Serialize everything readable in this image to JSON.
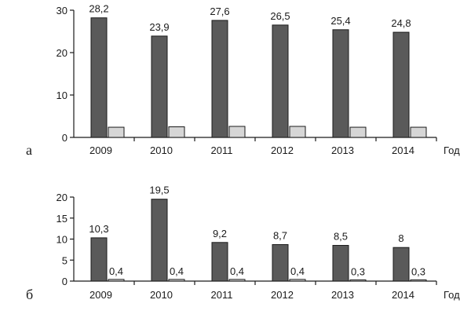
{
  "colors": {
    "dark_series": "#5a5a5a",
    "light_series": "#d6d6d6",
    "axis": "#1a1a1a"
  },
  "chart_data": [
    {
      "type": "bar",
      "panel_label": "а",
      "xlabel": "Год",
      "ylabel": "",
      "title": "",
      "categories": [
        "2009",
        "2010",
        "2011",
        "2012",
        "2013",
        "2014"
      ],
      "ylim": [
        0,
        30
      ],
      "yticks": [
        0,
        10,
        20,
        30
      ],
      "grid": false,
      "series": [
        {
          "values": [
            28.2,
            23.9,
            27.6,
            26.5,
            25.4,
            24.8
          ],
          "value_labels": [
            "28,2",
            "23,9",
            "27,6",
            "26,5",
            "25,4",
            "24,8"
          ],
          "color": "#5a5a5a"
        },
        {
          "values": [
            2.4,
            2.5,
            2.6,
            2.6,
            2.4,
            2.4
          ],
          "value_labels": [],
          "color": "#d6d6d6"
        }
      ]
    },
    {
      "type": "bar",
      "panel_label": "б",
      "xlabel": "Год",
      "ylabel": "",
      "title": "",
      "categories": [
        "2009",
        "2010",
        "2011",
        "2012",
        "2013",
        "2014"
      ],
      "ylim": [
        0,
        20
      ],
      "yticks": [
        0,
        5,
        10,
        15,
        20
      ],
      "grid": false,
      "series": [
        {
          "values": [
            10.3,
            19.5,
            9.2,
            8.7,
            8.5,
            8.0
          ],
          "value_labels": [
            "10,3",
            "19,5",
            "9,2",
            "8,7",
            "8,5",
            "8"
          ],
          "color": "#5a5a5a"
        },
        {
          "values": [
            0.4,
            0.4,
            0.4,
            0.4,
            0.3,
            0.3
          ],
          "value_labels": [
            "0,4",
            "0,4",
            "0,4",
            "0,4",
            "0,3",
            "0,3"
          ],
          "color": "#d6d6d6"
        }
      ]
    }
  ]
}
